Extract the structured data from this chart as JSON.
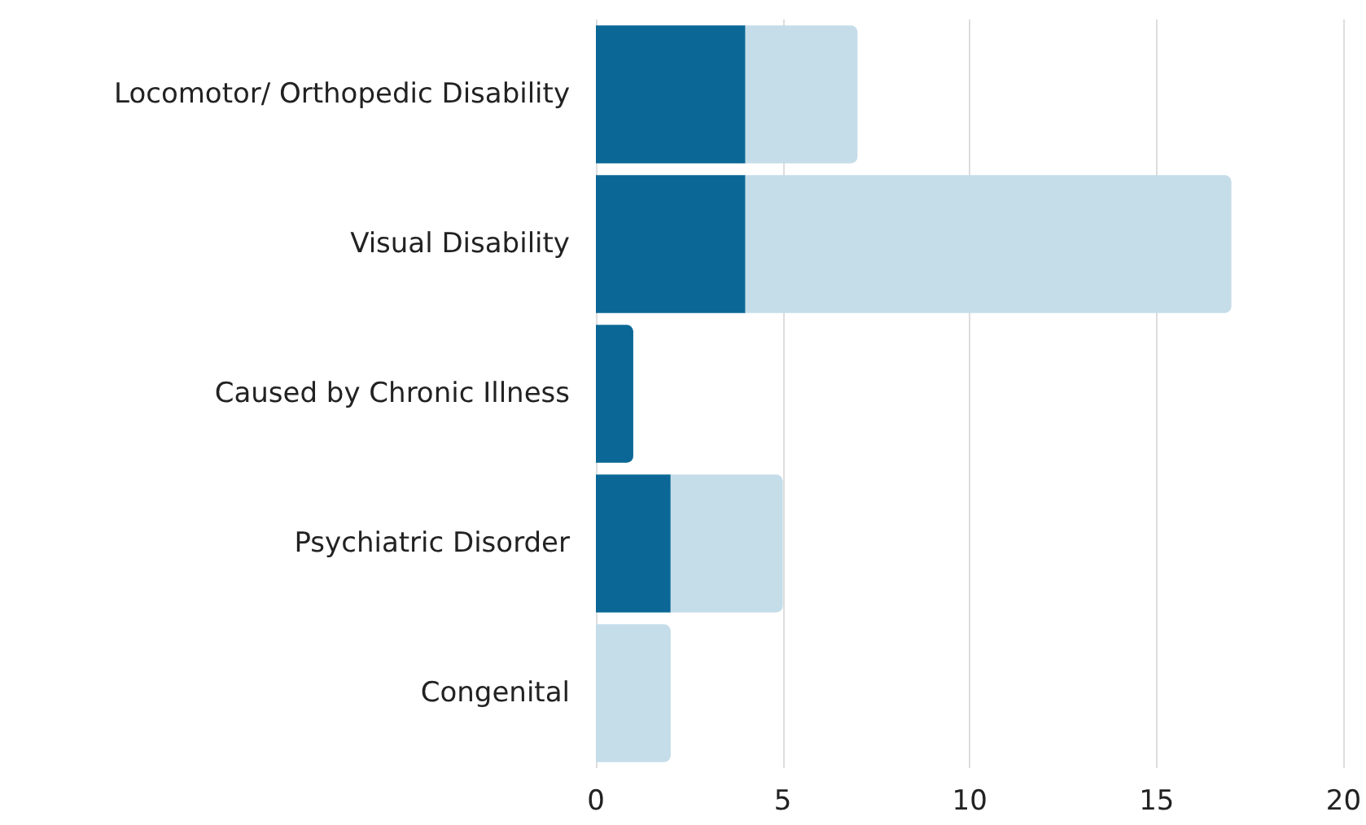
{
  "chart_data": {
    "type": "bar",
    "orientation": "horizontal",
    "stacked": true,
    "categories": [
      "Locomotor/ Orthopedic Disability",
      "Visual Disability",
      "Caused by Chronic Illness",
      "Psychiatric Disorder",
      "Congenital"
    ],
    "series": [
      {
        "color": "#0b6896",
        "values": [
          4,
          4,
          1,
          2,
          0
        ]
      },
      {
        "color": "#c5dde8",
        "values": [
          3,
          13,
          0,
          3,
          2
        ]
      }
    ],
    "xlim": [
      0,
      20
    ],
    "xticks": [
      0,
      5,
      10,
      15,
      20
    ],
    "grid": "x"
  }
}
